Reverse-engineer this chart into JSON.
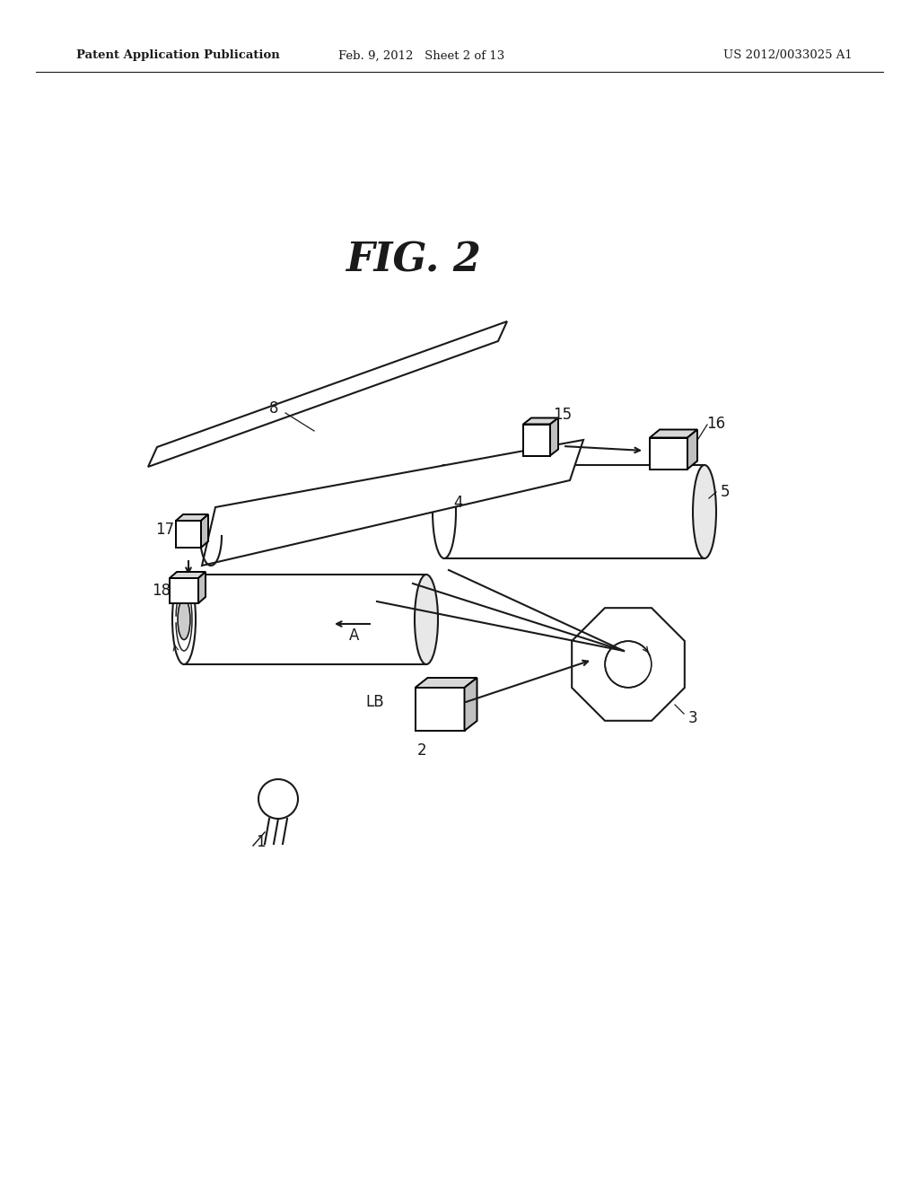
{
  "background_color": "#ffffff",
  "line_color": "#1a1a1a",
  "fig_label": "FIG. 2",
  "header_left": "Patent Application Publication",
  "header_mid": "Feb. 9, 2012   Sheet 2 of 13",
  "header_right": "US 2012/0033025 A1"
}
